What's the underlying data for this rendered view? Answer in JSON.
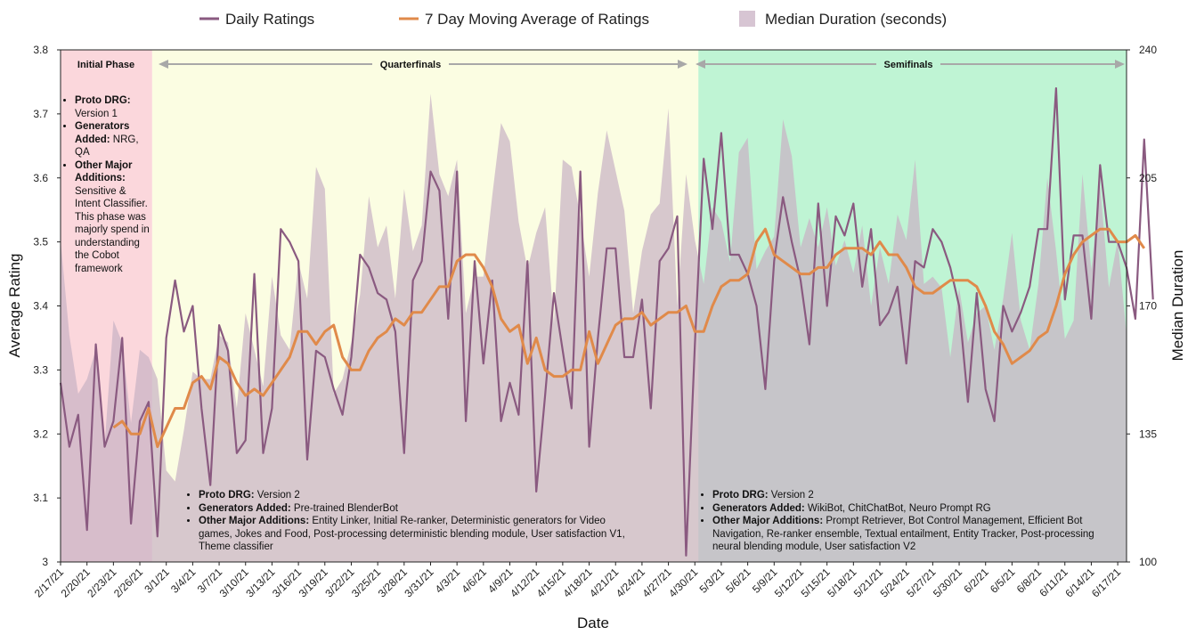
{
  "chart_data": {
    "type": "line",
    "x_label": "Date",
    "y_label_left": "Average Rating",
    "y_label_right": "Median Duration",
    "y_left_range": [
      3.0,
      3.8
    ],
    "y_left_ticks": [
      "3",
      "3.1",
      "3.2",
      "3.3",
      "3.4",
      "3.5",
      "3.6",
      "3.7",
      "3.8"
    ],
    "y_right_range": [
      100,
      240
    ],
    "y_right_ticks": [
      "100",
      "135",
      "170",
      "205",
      "240"
    ],
    "x_tick_labels": [
      "2/17/21",
      "2/20/21",
      "2/23/21",
      "2/26/21",
      "3/1/21",
      "3/4/21",
      "3/7/21",
      "3/10/21",
      "3/13/21",
      "3/16/21",
      "3/19/21",
      "3/22/21",
      "3/25/21",
      "3/28/21",
      "3/31/21",
      "4/3/21",
      "4/6/21",
      "4/9/21",
      "4/12/21",
      "4/15/21",
      "4/18/21",
      "4/21/21",
      "4/24/21",
      "4/27/21",
      "4/30/21",
      "5/3/21",
      "5/6/21",
      "5/9/21",
      "5/12/21",
      "5/15/21",
      "5/18/21",
      "5/21/21",
      "5/24/21",
      "5/27/21",
      "5/30/21",
      "6/2/21",
      "6/5/21",
      "6/8/21",
      "6/11/21",
      "6/14/21",
      "6/17/21"
    ],
    "num_days": 122,
    "legend": [
      {
        "label": "Daily Ratings",
        "color": "#8a5a80"
      },
      {
        "label": "7 Day Moving Average of Ratings",
        "color": "#e08a4a"
      },
      {
        "label": "Median Duration (seconds)",
        "color": "#d7c5d3"
      }
    ],
    "series": [
      {
        "name": "Daily Ratings",
        "values": [
          3.28,
          3.18,
          3.23,
          3.05,
          3.34,
          3.18,
          3.22,
          3.35,
          3.06,
          3.22,
          3.25,
          3.04,
          3.35,
          3.44,
          3.36,
          3.4,
          3.24,
          3.12,
          3.37,
          3.33,
          3.17,
          3.19,
          3.45,
          3.17,
          3.24,
          3.52,
          3.5,
          3.47,
          3.16,
          3.33,
          3.32,
          3.27,
          3.23,
          3.32,
          3.48,
          3.46,
          3.42,
          3.41,
          3.36,
          3.17,
          3.44,
          3.47,
          3.61,
          3.58,
          3.38,
          3.61,
          3.22,
          3.47,
          3.31,
          3.44,
          3.22,
          3.28,
          3.23,
          3.47,
          3.11,
          3.26,
          3.42,
          3.33,
          3.24,
          3.61,
          3.18,
          3.35,
          3.49,
          3.49,
          3.32,
          3.32,
          3.41,
          3.24,
          3.47,
          3.49,
          3.54,
          3.01,
          3.34,
          3.63,
          3.52,
          3.67,
          3.48,
          3.48,
          3.45,
          3.4,
          3.27,
          3.47,
          3.57,
          3.5,
          3.44,
          3.34,
          3.56,
          3.4,
          3.54,
          3.51,
          3.56,
          3.43,
          3.52,
          3.37,
          3.39,
          3.43,
          3.31,
          3.47,
          3.46,
          3.52,
          3.5,
          3.46,
          3.4,
          3.25,
          3.42,
          3.27,
          3.22,
          3.4,
          3.36,
          3.39,
          3.43,
          3.52,
          3.52,
          3.74,
          3.41,
          3.51,
          3.51,
          3.38,
          3.62,
          3.5,
          3.5,
          3.46,
          3.38,
          3.66,
          3.41
        ]
      },
      {
        "name": "7 Day Moving Average of Ratings",
        "start_day": 6,
        "values": [
          3.21,
          3.22,
          3.2,
          3.2,
          3.24,
          3.18,
          3.21,
          3.24,
          3.24,
          3.28,
          3.29,
          3.27,
          3.32,
          3.31,
          3.28,
          3.26,
          3.27,
          3.26,
          3.28,
          3.3,
          3.32,
          3.36,
          3.36,
          3.34,
          3.36,
          3.37,
          3.32,
          3.3,
          3.3,
          3.33,
          3.35,
          3.36,
          3.38,
          3.37,
          3.39,
          3.39,
          3.41,
          3.43,
          3.43,
          3.47,
          3.48,
          3.48,
          3.46,
          3.43,
          3.38,
          3.36,
          3.37,
          3.31,
          3.35,
          3.3,
          3.29,
          3.29,
          3.3,
          3.3,
          3.36,
          3.31,
          3.34,
          3.37,
          3.38,
          3.38,
          3.39,
          3.37,
          3.38,
          3.39,
          3.39,
          3.4,
          3.36,
          3.36,
          3.4,
          3.43,
          3.44,
          3.44,
          3.45,
          3.5,
          3.52,
          3.48,
          3.47,
          3.46,
          3.45,
          3.45,
          3.46,
          3.46,
          3.48,
          3.49,
          3.49,
          3.49,
          3.48,
          3.5,
          3.48,
          3.48,
          3.46,
          3.43,
          3.42,
          3.42,
          3.43,
          3.44,
          3.44,
          3.44,
          3.43,
          3.4,
          3.36,
          3.34,
          3.31,
          3.32,
          3.33,
          3.35,
          3.36,
          3.4,
          3.45,
          3.48,
          3.5,
          3.51,
          3.52,
          3.52,
          3.5,
          3.5,
          3.51,
          3.49
        ]
      },
      {
        "name": "Median Duration (seconds)",
        "axis": "right",
        "values": [
          188,
          162,
          146,
          150,
          158,
          132,
          166,
          160,
          138,
          158,
          156,
          150,
          125,
          122,
          136,
          152,
          150,
          150,
          162,
          160,
          142,
          168,
          158,
          148,
          178,
          162,
          158,
          182,
          172,
          208,
          202,
          146,
          150,
          160,
          173,
          200,
          186,
          192,
          172,
          202,
          185,
          192,
          228,
          206,
          200,
          210,
          168,
          178,
          178,
          200,
          220,
          215,
          193,
          180,
          190,
          197,
          165,
          210,
          208,
          194,
          178,
          201,
          218,
          207,
          196,
          168,
          185,
          195,
          198,
          224,
          170,
          206,
          188,
          176,
          197,
          193,
          182,
          212,
          216,
          180,
          185,
          189,
          221,
          211,
          186,
          194,
          186,
          197,
          181,
          188,
          179,
          192,
          170,
          186,
          176,
          195,
          188,
          210,
          176,
          178,
          175,
          156,
          175,
          160,
          168,
          170,
          158,
          172,
          190,
          166,
          158,
          176,
          205,
          185,
          161,
          166,
          206,
          180,
          203,
          175,
          188,
          162,
          204,
          185
        ]
      }
    ],
    "phases": [
      {
        "label": "Initial Phase",
        "start_day": 0,
        "end_day": 10.4,
        "color": "#fbd7dc"
      },
      {
        "label": "Quarterfinals",
        "start_day": 10.4,
        "end_day": 72.4,
        "color": "#fbfde2"
      },
      {
        "label": "Semifinals",
        "start_day": 72.4,
        "end_day": 122,
        "color": "#bff4d4"
      }
    ],
    "phase_notes": {
      "initial": [
        {
          "bold": "Proto DRG:",
          "text": " Version 1"
        },
        {
          "bold": "Generators Added:",
          "text": " NRG, QA"
        },
        {
          "bold": "Other Major Additions:",
          "text": " Sensitive & Intent Classifier. This phase was majorly spend in understanding the Cobot framework"
        }
      ],
      "quarterfinals": [
        {
          "bold": "Proto DRG:",
          "text": " Version 2"
        },
        {
          "bold": "Generators Added:",
          "text": " Pre-trained BlenderBot"
        },
        {
          "bold": "Other Major Additions:",
          "text": " Entity Linker, Initial Re-ranker, Deterministic generators for Video games, Jokes and Food, Post-processing deterministic blending module, User satisfaction V1, Theme classifier"
        }
      ],
      "semifinals": [
        {
          "bold": "Proto DRG:",
          "text": " Version 2"
        },
        {
          "bold": "Generators Added:",
          "text": " WikiBot, ChitChatBot, Neuro Prompt RG"
        },
        {
          "bold": "Other Major Additions:",
          "text": " Prompt Retriever, Bot Control Management, Efficient Bot Navigation, Re-ranker ensemble, Textual entailment, Entity Tracker, Post-processing neural blending module, User satisfaction V2"
        }
      ]
    }
  }
}
